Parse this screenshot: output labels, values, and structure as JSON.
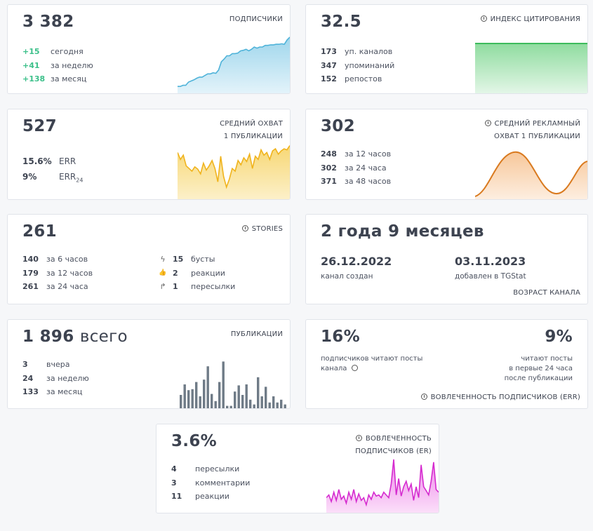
{
  "subscribers": {
    "value": "3 382",
    "label": "ПОДПИСЧИКИ",
    "rows": [
      {
        "v": "+15",
        "t": "сегодня"
      },
      {
        "v": "+41",
        "t": "за неделю"
      },
      {
        "v": "+138",
        "t": "за месяц"
      }
    ],
    "spark": [
      0.1,
      0.1,
      0.12,
      0.12,
      0.18,
      0.2,
      0.22,
      0.25,
      0.27,
      0.27,
      0.3,
      0.33,
      0.33,
      0.35,
      0.34,
      0.4,
      0.55,
      0.6,
      0.66,
      0.66,
      0.7,
      0.7,
      0.71,
      0.75,
      0.76,
      0.78,
      0.75,
      0.78,
      0.82,
      0.8,
      0.82,
      0.82,
      0.85,
      0.85,
      0.86,
      0.86,
      0.87,
      0.87,
      0.88,
      0.87,
      0.95,
      1.0
    ],
    "color": "#4fb3d9"
  },
  "citation": {
    "value": "32.5",
    "label": "ИНДЕКС ЦИТИРОВАНИЯ",
    "rows": [
      {
        "v": "173",
        "t": "уп. каналов"
      },
      {
        "v": "347",
        "t": "упоминаний"
      },
      {
        "v": "152",
        "t": "репостов"
      }
    ],
    "color": "#4cc46a"
  },
  "reach": {
    "value": "527",
    "label_line1": "СРЕДНИЙ ОХВАТ",
    "label_line2": "1 ПУБЛИКАЦИИ",
    "rows": [
      {
        "v": "15.6%",
        "t": "ERR"
      },
      {
        "v": "9%",
        "t": "ERR",
        "sub": "24"
      }
    ],
    "spark": [
      0.85,
      0.72,
      0.8,
      0.6,
      0.55,
      0.5,
      0.58,
      0.54,
      0.45,
      0.65,
      0.52,
      0.6,
      0.7,
      0.55,
      0.3,
      0.78,
      0.4,
      0.2,
      0.35,
      0.55,
      0.5,
      0.7,
      0.62,
      0.75,
      0.68,
      0.82,
      0.55,
      0.78,
      0.72,
      0.9,
      0.8,
      0.85,
      0.72,
      0.88,
      0.92,
      0.82,
      0.88,
      0.92,
      0.9,
      0.98
    ],
    "color": "#f2b820"
  },
  "ad_reach": {
    "value": "302",
    "label_line1": "СРЕДНИЙ РЕКЛАМНЫЙ",
    "label_line2": "ОХВАТ 1 ПУБЛИКАЦИИ",
    "rows": [
      {
        "v": "248",
        "t": "за 12 часов"
      },
      {
        "v": "302",
        "t": "за 24 часа"
      },
      {
        "v": "371",
        "t": "за 48 часов"
      }
    ],
    "color": "#e8892b"
  },
  "stories": {
    "value": "261",
    "label": "STORIES",
    "rows": [
      {
        "v": "140",
        "t": "за 6 часов"
      },
      {
        "v": "179",
        "t": "за 12 часов"
      },
      {
        "v": "261",
        "t": "за 24 часа"
      }
    ],
    "rows2": [
      {
        "icon": "ϟ",
        "v": "15",
        "t": "бусты"
      },
      {
        "icon": "👍",
        "v": "2",
        "t": "реакции"
      },
      {
        "icon": "↱",
        "v": "1",
        "t": "пересылки"
      }
    ]
  },
  "age": {
    "value": "2 года 9 месяцев",
    "created_date": "26.12.2022",
    "created_label": "канал создан",
    "added_date": "03.11.2023",
    "added_label": "добавлен в TGStat",
    "label": "ВОЗРАСТ КАНАЛА"
  },
  "posts": {
    "value": "1 896",
    "value_suffix": "всего",
    "label": "ПУБЛИКАЦИИ",
    "rows": [
      {
        "v": "3",
        "t": "вчера"
      },
      {
        "v": "24",
        "t": "за неделю"
      },
      {
        "v": "133",
        "t": "за месяц"
      }
    ],
    "bars": [
      0.28,
      0.5,
      0.38,
      0.4,
      0.55,
      0.25,
      0.6,
      0.88,
      0.3,
      0.15,
      0.55,
      0.98,
      0.05,
      0.05,
      0.35,
      0.48,
      0.28,
      0.5,
      0.18,
      0.08,
      0.65,
      0.25,
      0.45,
      0.12,
      0.25,
      0.12,
      0.18,
      0.08
    ],
    "color": "#6f7b87"
  },
  "engagement": {
    "left_value": "16%",
    "left_line1": "подписчиков читают посты",
    "left_line2": "канала",
    "right_value": "9%",
    "right_line1": "читают посты",
    "right_line2": "в первые 24 часа",
    "right_line3": "после публикации",
    "label": "ВОВЛЕЧЕННОСТЬ ПОДПИСЧИКОВ (ERR)"
  },
  "er": {
    "value": "3.6%",
    "label_line1": "ВОВЛЕЧЕННОСТЬ",
    "label_line2": "ПОДПИСЧИКОВ (ER)",
    "rows": [
      {
        "v": "4",
        "t": "пересылки"
      },
      {
        "v": "3",
        "t": "комментарии"
      },
      {
        "v": "11",
        "t": "реакции"
      }
    ],
    "spark": [
      0.25,
      0.3,
      0.18,
      0.35,
      0.2,
      0.4,
      0.22,
      0.28,
      0.15,
      0.35,
      0.22,
      0.4,
      0.18,
      0.32,
      0.2,
      0.25,
      0.12,
      0.3,
      0.22,
      0.35,
      0.28,
      0.3,
      0.25,
      0.35,
      0.3,
      0.25,
      0.5,
      0.95,
      0.3,
      0.6,
      0.28,
      0.45,
      0.55,
      0.38,
      0.5,
      0.2,
      0.45,
      0.25,
      0.85,
      0.45,
      0.38,
      0.3,
      0.55,
      0.9,
      0.4,
      0.35
    ],
    "color": "#d52bcf"
  }
}
